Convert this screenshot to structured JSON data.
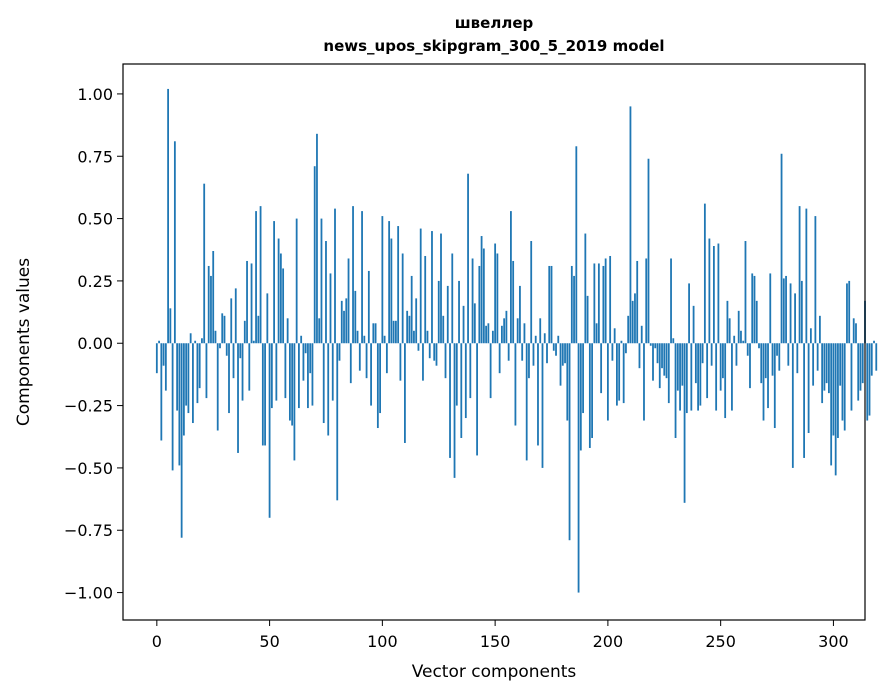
{
  "chart_data": {
    "type": "bar",
    "title": "швеллер",
    "subtitle": "news_upos_skipgram_300_5_2019 model",
    "xlabel": "Vector components",
    "ylabel": "Components values",
    "xlim": [
      -15,
      314
    ],
    "ylim": [
      -1.11,
      1.12
    ],
    "xticks": [
      0,
      50,
      100,
      150,
      200,
      250,
      300
    ],
    "yticks": [
      -1.0,
      -0.75,
      -0.5,
      -0.25,
      0.0,
      0.25,
      0.5,
      0.75,
      1.0
    ],
    "ytick_labels": [
      "−1.00",
      "−0.75",
      "−0.50",
      "−0.25",
      "0.00",
      "0.25",
      "0.50",
      "0.75",
      "1.00"
    ],
    "xtick_labels": [
      "0",
      "50",
      "100",
      "150",
      "200",
      "250",
      "300"
    ],
    "bar_color": "#1f77b4",
    "grid": false,
    "values": [
      -0.12,
      0.01,
      -0.39,
      -0.09,
      -0.19,
      1.02,
      0.14,
      -0.51,
      0.81,
      -0.27,
      -0.49,
      -0.78,
      -0.37,
      -0.25,
      -0.28,
      0.04,
      -0.32,
      0.01,
      -0.24,
      -0.18,
      0.02,
      0.64,
      -0.22,
      0.31,
      0.27,
      0.37,
      0.05,
      -0.35,
      -0.02,
      0.12,
      0.11,
      -0.05,
      -0.28,
      0.18,
      -0.14,
      0.22,
      -0.44,
      -0.06,
      -0.23,
      0.09,
      0.33,
      -0.19,
      0.32,
      0.01,
      0.53,
      0.11,
      0.55,
      -0.41,
      -0.41,
      0.2,
      -0.7,
      -0.26,
      0.49,
      -0.23,
      0.42,
      0.36,
      0.3,
      -0.22,
      0.1,
      -0.31,
      -0.33,
      -0.47,
      0.5,
      -0.26,
      0.03,
      -0.15,
      -0.04,
      -0.26,
      -0.12,
      -0.25,
      0.71,
      0.84,
      0.1,
      0.5,
      -0.32,
      0.41,
      -0.37,
      0.28,
      -0.23,
      0.54,
      -0.63,
      -0.07,
      0.17,
      0.13,
      0.18,
      0.34,
      -0.16,
      0.55,
      0.21,
      0.05,
      -0.11,
      0.53,
      0.03,
      -0.14,
      0.29,
      -0.25,
      0.08,
      0.08,
      -0.34,
      -0.28,
      0.51,
      0.03,
      -0.12,
      0.49,
      0.42,
      0.09,
      0.09,
      0.47,
      -0.15,
      0.36,
      -0.4,
      0.13,
      0.11,
      0.27,
      0.05,
      0.18,
      -0.03,
      0.46,
      -0.15,
      0.35,
      0.05,
      -0.06,
      0.45,
      -0.07,
      -0.09,
      0.25,
      0.44,
      0.11,
      -0.14,
      0.23,
      -0.46,
      0.36,
      -0.54,
      -0.25,
      0.25,
      -0.38,
      0.15,
      -0.3,
      0.68,
      -0.22,
      0.34,
      0.16,
      -0.45,
      0.31,
      0.43,
      0.38,
      0.07,
      0.08,
      -0.22,
      0.05,
      0.4,
      0.36,
      -0.12,
      0.07,
      0.1,
      0.13,
      -0.07,
      0.53,
      0.33,
      -0.33,
      0.1,
      0.23,
      -0.07,
      0.08,
      -0.47,
      -0.14,
      0.41,
      -0.09,
      0.03,
      -0.41,
      0.1,
      -0.5,
      0.04,
      -0.08,
      0.31,
      0.31,
      -0.03,
      -0.05,
      0.03,
      -0.17,
      -0.09,
      -0.08,
      -0.31,
      -0.79,
      0.31,
      0.27,
      0.79,
      -1.0,
      -0.43,
      -0.28,
      0.44,
      0.19,
      -0.42,
      -0.38,
      0.32,
      0.08,
      0.32,
      -0.2,
      0.31,
      0.34,
      -0.31,
      0.35,
      -0.07,
      0.06,
      -0.25,
      -0.23,
      0.01,
      -0.24,
      -0.04,
      0.11,
      0.95,
      0.17,
      0.2,
      0.33,
      -0.1,
      0.07,
      -0.31,
      0.34,
      0.74,
      -0.01,
      -0.15,
      -0.02,
      -0.08,
      -0.18,
      -0.1,
      -0.13,
      -0.14,
      -0.24,
      0.34,
      0.02,
      -0.38,
      -0.19,
      -0.27,
      -0.17,
      -0.64,
      -0.28,
      0.24,
      -0.27,
      0.15,
      -0.16,
      -0.27,
      -0.25,
      -0.08,
      0.56,
      -0.22,
      0.42,
      -0.09,
      0.39,
      -0.27,
      0.4,
      -0.19,
      -0.14,
      -0.3,
      0.17,
      0.1,
      -0.27,
      0.03,
      -0.09,
      0.13,
      0.05,
      0.01,
      0.41,
      -0.05,
      -0.18,
      0.28,
      0.27,
      0.17,
      -0.02,
      -0.16,
      -0.31,
      -0.14,
      -0.26,
      0.28,
      -0.13,
      -0.34,
      -0.05,
      -0.11,
      0.76,
      0.26,
      0.27,
      -0.09,
      0.24,
      -0.5,
      0.2,
      -0.12,
      0.55,
      0.25,
      -0.46,
      0.54,
      -0.36,
      0.06,
      -0.17,
      0.51,
      -0.11,
      0.11,
      -0.24,
      -0.19,
      -0.16,
      -0.2,
      -0.49,
      -0.37,
      -0.53,
      -0.38,
      -0.17,
      -0.31,
      -0.35,
      0.24,
      0.25,
      -0.27,
      0.1,
      0.08,
      -0.23,
      -0.19,
      -0.16,
      0.17,
      -0.31,
      -0.29,
      -0.13,
      0.01,
      -0.11
    ]
  }
}
